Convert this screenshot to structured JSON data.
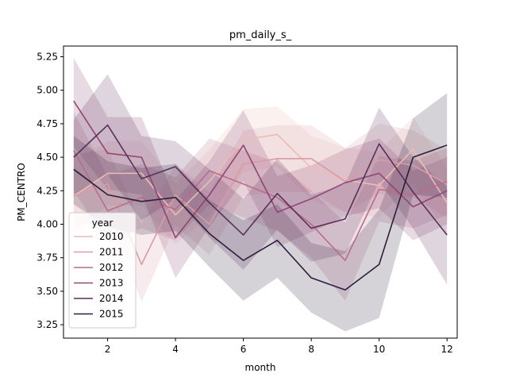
{
  "chart_data": {
    "type": "line",
    "title": "pm_daily_s_",
    "xlabel": "month",
    "ylabel": "PM_CENTRO",
    "xlim": [
      0.7,
      12.3
    ],
    "ylim": [
      3.15,
      5.33
    ],
    "xticks": [
      2,
      4,
      6,
      8,
      10,
      12
    ],
    "yticks": [
      3.25,
      3.5,
      3.75,
      4.0,
      4.25,
      4.5,
      4.75,
      5.0,
      5.25
    ],
    "ytick_labels": [
      "3.25",
      "3.50",
      "3.75",
      "4.00",
      "4.25",
      "4.50",
      "4.75",
      "5.00",
      "5.25"
    ],
    "grid": false,
    "legend": {
      "title": "year",
      "placement": "lower-left"
    },
    "x": [
      1,
      2,
      3,
      4,
      5,
      6,
      7,
      8,
      9,
      10,
      11,
      12
    ],
    "series": [
      {
        "name": "2010",
        "color": "#ebbcb6",
        "values": [
          4.21,
          4.38,
          4.38,
          4.07,
          4.32,
          4.63,
          4.67,
          4.42,
          4.33,
          4.29,
          4.56,
          4.16
        ],
        "ci_low": [
          3.95,
          4.14,
          4.14,
          3.85,
          4.06,
          4.39,
          4.43,
          4.18,
          4.09,
          4.05,
          4.31,
          3.92
        ],
        "ci_high": [
          4.48,
          4.62,
          4.62,
          4.3,
          4.56,
          4.86,
          4.88,
          4.66,
          4.57,
          4.54,
          4.8,
          4.42
        ]
      },
      {
        "name": "2011",
        "color": "#d99ba5",
        "values": [
          4.21,
          4.3,
          3.7,
          4.22,
          4.0,
          4.45,
          4.49,
          4.49,
          4.32,
          4.48,
          4.44,
          4.3
        ],
        "ci_low": [
          3.93,
          4.08,
          3.42,
          3.99,
          3.77,
          4.21,
          4.24,
          4.24,
          4.09,
          4.23,
          4.2,
          4.05
        ],
        "ci_high": [
          4.52,
          4.56,
          4.0,
          4.45,
          4.24,
          4.7,
          4.74,
          4.74,
          4.57,
          4.75,
          4.7,
          4.56
        ]
      },
      {
        "name": "2012",
        "color": "#b86d8a",
        "values": [
          4.55,
          4.1,
          4.2,
          4.11,
          4.4,
          4.3,
          4.2,
          4.0,
          3.73,
          4.26,
          4.22,
          4.32
        ],
        "ci_low": [
          4.25,
          3.86,
          3.97,
          3.88,
          4.15,
          4.05,
          3.95,
          3.75,
          3.43,
          4.02,
          3.97,
          4.07
        ],
        "ci_high": [
          4.84,
          4.36,
          4.45,
          4.35,
          4.64,
          4.55,
          4.46,
          4.25,
          4.01,
          4.51,
          4.47,
          4.57
        ]
      },
      {
        "name": "2013",
        "color": "#8e4674",
        "values": [
          4.92,
          4.53,
          4.5,
          3.9,
          4.22,
          4.59,
          4.09,
          4.19,
          4.31,
          4.38,
          4.13,
          4.25
        ],
        "ci_low": [
          4.58,
          4.26,
          4.22,
          3.6,
          3.98,
          4.32,
          3.83,
          3.94,
          4.06,
          4.12,
          3.88,
          4.0
        ],
        "ci_high": [
          5.24,
          4.8,
          4.8,
          4.18,
          4.47,
          4.85,
          4.36,
          4.44,
          4.56,
          4.64,
          4.4,
          4.5
        ]
      },
      {
        "name": "2014",
        "color": "#5a2f5a",
        "values": [
          4.5,
          4.74,
          4.34,
          4.43,
          4.16,
          3.92,
          4.23,
          3.97,
          4.04,
          4.6,
          4.24,
          3.92
        ],
        "ci_low": [
          4.22,
          4.37,
          4.03,
          4.19,
          3.9,
          3.66,
          3.96,
          3.72,
          3.78,
          4.32,
          3.97,
          3.55
        ],
        "ci_high": [
          4.78,
          5.12,
          4.66,
          4.62,
          4.41,
          4.19,
          4.49,
          4.22,
          4.3,
          4.87,
          4.5,
          4.28
        ]
      },
      {
        "name": "2015",
        "color": "#2d1e3e",
        "values": [
          4.41,
          4.22,
          4.17,
          4.2,
          3.93,
          3.73,
          3.88,
          3.6,
          3.51,
          3.7,
          4.5,
          4.59
        ],
        "ci_low": [
          4.15,
          3.98,
          3.92,
          3.95,
          3.68,
          3.43,
          3.6,
          3.34,
          3.2,
          3.3,
          4.22,
          4.2
        ],
        "ci_high": [
          4.66,
          4.47,
          4.42,
          4.45,
          4.18,
          4.03,
          4.15,
          3.86,
          3.8,
          4.11,
          4.79,
          4.98
        ]
      }
    ]
  }
}
